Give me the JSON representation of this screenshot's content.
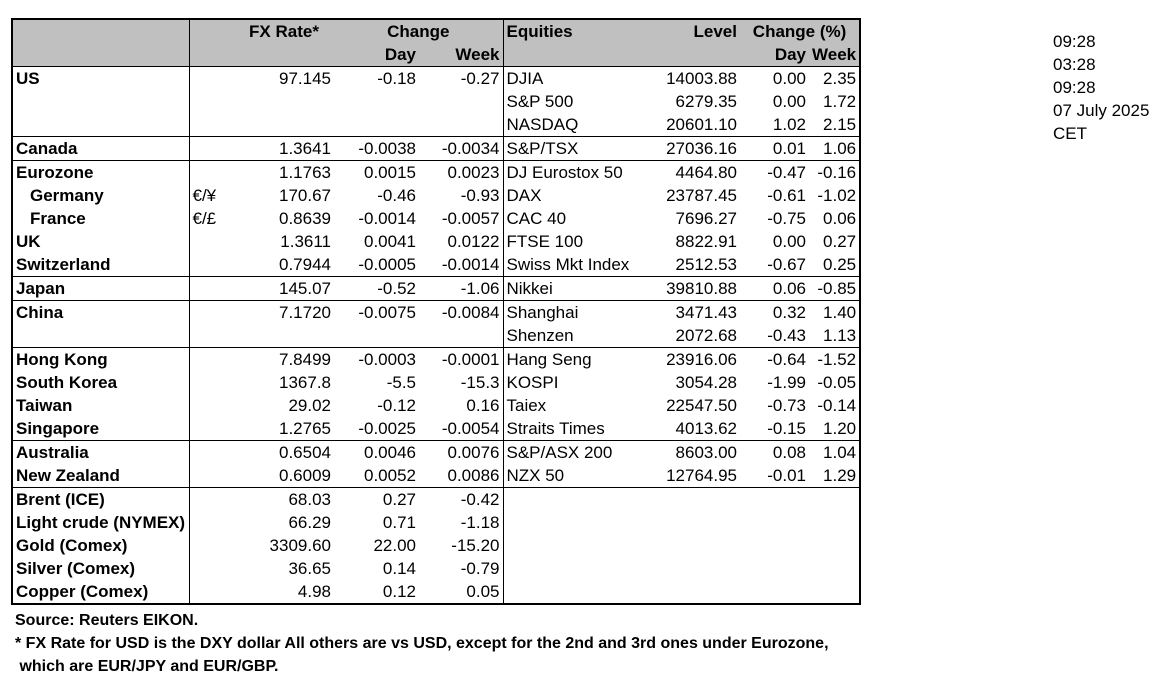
{
  "header": {
    "fx_rate": "FX Rate*",
    "change": "Change",
    "day": "Day",
    "week": "Week",
    "equities": "Equities",
    "level": "Level",
    "change_pct": "Change (%)",
    "eq_day": "Day",
    "eq_week": "Week"
  },
  "rows": [
    {
      "country": "US",
      "sym": "",
      "fx": "97.145",
      "fxday": "-0.18",
      "fxweek": "-0.27",
      "eq": "DJIA",
      "level": "14003.88",
      "eqday": "0.00",
      "eqweek": "2.35"
    },
    {
      "country": "",
      "sym": "",
      "fx": "",
      "fxday": "",
      "fxweek": "",
      "eq": "S&P 500",
      "level": "6279.35",
      "eqday": "0.00",
      "eqweek": "1.72"
    },
    {
      "country": "",
      "sym": "",
      "fx": "",
      "fxday": "",
      "fxweek": "",
      "eq": "NASDAQ",
      "level": "20601.10",
      "eqday": "1.02",
      "eqweek": "2.15"
    },
    {
      "country": "Canada",
      "sym": "",
      "fx": "1.3641",
      "fxday": "-0.0038",
      "fxweek": "-0.0034",
      "eq": "S&P/TSX",
      "level": "27036.16",
      "eqday": "0.01",
      "eqweek": "1.06"
    },
    {
      "country": "Eurozone",
      "sym": "",
      "fx": "1.1763",
      "fxday": "0.0015",
      "fxweek": "0.0023",
      "eq": "DJ Eurostox 50",
      "level": "4464.80",
      "eqday": "-0.47",
      "eqweek": "-0.16"
    },
    {
      "country": "Germany",
      "sym": "€/¥",
      "fx": "170.67",
      "fxday": "-0.46",
      "fxweek": "-0.93",
      "eq": "DAX",
      "level": "23787.45",
      "eqday": "-0.61",
      "eqweek": "-1.02"
    },
    {
      "country": "France",
      "sym": "€/£",
      "fx": "0.8639",
      "fxday": "-0.0014",
      "fxweek": "-0.0057",
      "eq": "CAC 40",
      "level": "7696.27",
      "eqday": "-0.75",
      "eqweek": "0.06"
    },
    {
      "country": "UK",
      "sym": "",
      "fx": "1.3611",
      "fxday": "0.0041",
      "fxweek": "0.0122",
      "eq": "FTSE 100",
      "level": "8822.91",
      "eqday": "0.00",
      "eqweek": "0.27"
    },
    {
      "country": "Switzerland",
      "sym": "",
      "fx": "0.7944",
      "fxday": "-0.0005",
      "fxweek": "-0.0014",
      "eq": "Swiss Mkt Index",
      "level": "2512.53",
      "eqday": "-0.67",
      "eqweek": "0.25"
    },
    {
      "country": "Japan",
      "sym": "",
      "fx": "145.07",
      "fxday": "-0.52",
      "fxweek": "-1.06",
      "eq": "Nikkei",
      "level": "39810.88",
      "eqday": "0.06",
      "eqweek": "-0.85"
    },
    {
      "country": "China",
      "sym": "",
      "fx": "7.1720",
      "fxday": "-0.0075",
      "fxweek": "-0.0084",
      "eq": "Shanghai",
      "level": "3471.43",
      "eqday": "0.32",
      "eqweek": "1.40"
    },
    {
      "country": "",
      "sym": "",
      "fx": "",
      "fxday": "",
      "fxweek": "",
      "eq": "Shenzen",
      "level": "2072.68",
      "eqday": "-0.43",
      "eqweek": "1.13"
    },
    {
      "country": "Hong Kong",
      "sym": "",
      "fx": "7.8499",
      "fxday": "-0.0003",
      "fxweek": "-0.0001",
      "eq": "Hang Seng",
      "level": "23916.06",
      "eqday": "-0.64",
      "eqweek": "-1.52"
    },
    {
      "country": "South Korea",
      "sym": "",
      "fx": "1367.8",
      "fxday": "-5.5",
      "fxweek": "-15.3",
      "eq": "KOSPI",
      "level": "3054.28",
      "eqday": "-1.99",
      "eqweek": "-0.05"
    },
    {
      "country": "Taiwan",
      "sym": "",
      "fx": "29.02",
      "fxday": "-0.12",
      "fxweek": "0.16",
      "eq": "Taiex",
      "level": "22547.50",
      "eqday": "-0.73",
      "eqweek": "-0.14"
    },
    {
      "country": "Singapore",
      "sym": "",
      "fx": "1.2765",
      "fxday": "-0.0025",
      "fxweek": "-0.0054",
      "eq": "Straits Times",
      "level": "4013.62",
      "eqday": "-0.15",
      "eqweek": "1.20"
    },
    {
      "country": "Australia",
      "sym": "",
      "fx": "0.6504",
      "fxday": "0.0046",
      "fxweek": "0.0076",
      "eq": "S&P/ASX  200",
      "level": "8603.00",
      "eqday": "0.08",
      "eqweek": "1.04"
    },
    {
      "country": "New Zealand",
      "sym": "",
      "fx": "0.6009",
      "fxday": "0.0052",
      "fxweek": "0.0086",
      "eq": "NZX 50",
      "level": "12764.95",
      "eqday": "-0.01",
      "eqweek": "1.29"
    },
    {
      "country": "Brent (ICE)",
      "sym": "",
      "fx": "68.03",
      "fxday": "0.27",
      "fxweek": "-0.42",
      "eq": "",
      "level": "",
      "eqday": "",
      "eqweek": ""
    },
    {
      "country": "Light crude (NYMEX)",
      "sym": "",
      "fx": "66.29",
      "fxday": "0.71",
      "fxweek": "-1.18",
      "eq": "",
      "level": "",
      "eqday": "",
      "eqweek": ""
    },
    {
      "country": "Gold (Comex)",
      "sym": "",
      "fx": "3309.60",
      "fxday": "22.00",
      "fxweek": "-15.20",
      "eq": "",
      "level": "",
      "eqday": "",
      "eqweek": ""
    },
    {
      "country": "Silver (Comex)",
      "sym": "",
      "fx": "36.65",
      "fxday": "0.14",
      "fxweek": "-0.79",
      "eq": "",
      "level": "",
      "eqday": "",
      "eqweek": ""
    },
    {
      "country": "Copper (Comex)",
      "sym": "",
      "fx": "4.98",
      "fxday": "0.12",
      "fxweek": "0.05",
      "eq": "",
      "level": "",
      "eqday": "",
      "eqweek": ""
    }
  ],
  "timestamps": [
    "09:28",
    "03:28",
    "09:28",
    "07 July 2025",
    "CET"
  ],
  "notes": {
    "source": "Source:  Reuters EIKON.",
    "footnote1": "* FX Rate for USD is the DXY dollar  All others are vs USD, except for the 2nd and 3rd ones under Eurozone,",
    "footnote2": " which are EUR/JPY and EUR/GBP."
  }
}
